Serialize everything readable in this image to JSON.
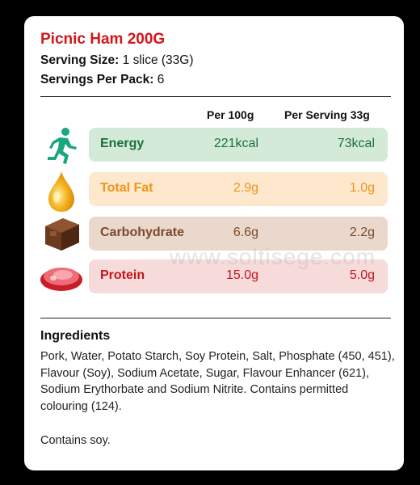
{
  "product": {
    "title": "Picnic Ham 200G",
    "serving_size_label": "Serving Size:",
    "serving_size_value": "1 slice (33G)",
    "servings_label": "Servings Per Pack:",
    "servings_value": "6"
  },
  "table": {
    "col1": "Per 100g",
    "col2": "Per Serving 33g",
    "rows": [
      {
        "name": "Energy",
        "per100": "221kcal",
        "perServing": "73kcal",
        "bg": "#d3ead9",
        "name_color": "#1d6f3a",
        "value_color": "#1d6f3a",
        "icon": "runner-icon"
      },
      {
        "name": "Total Fat",
        "per100": "2.9g",
        "perServing": "1.0g",
        "bg": "#fde8cd",
        "name_color": "#f0951c",
        "value_color": "#f0951c",
        "icon": "oil-drop-icon"
      },
      {
        "name": "Carbohydrate",
        "per100": "6.6g",
        "perServing": "2.2g",
        "bg": "#ead8cd",
        "name_color": "#7b4a2a",
        "value_color": "#7b4a2a",
        "icon": "bread-icon"
      },
      {
        "name": "Protein",
        "per100": "15.0g",
        "perServing": "5.0g",
        "bg": "#f7dada",
        "name_color": "#c4161c",
        "value_color": "#c4161c",
        "icon": "meat-icon"
      }
    ]
  },
  "ingredients": {
    "title": "Ingredients",
    "text": "Pork, Water, Potato Starch, Soy Protein, Salt, Phosphate (450, 451), Flavour (Soy), Sodium Acetate, Sugar, Flavour Enhancer (621), Sodium Erythorbate and Sodium Nitrite. Contains permitted colouring (124).",
    "contains": "Contains soy."
  },
  "watermark": "www.soltisege.com"
}
